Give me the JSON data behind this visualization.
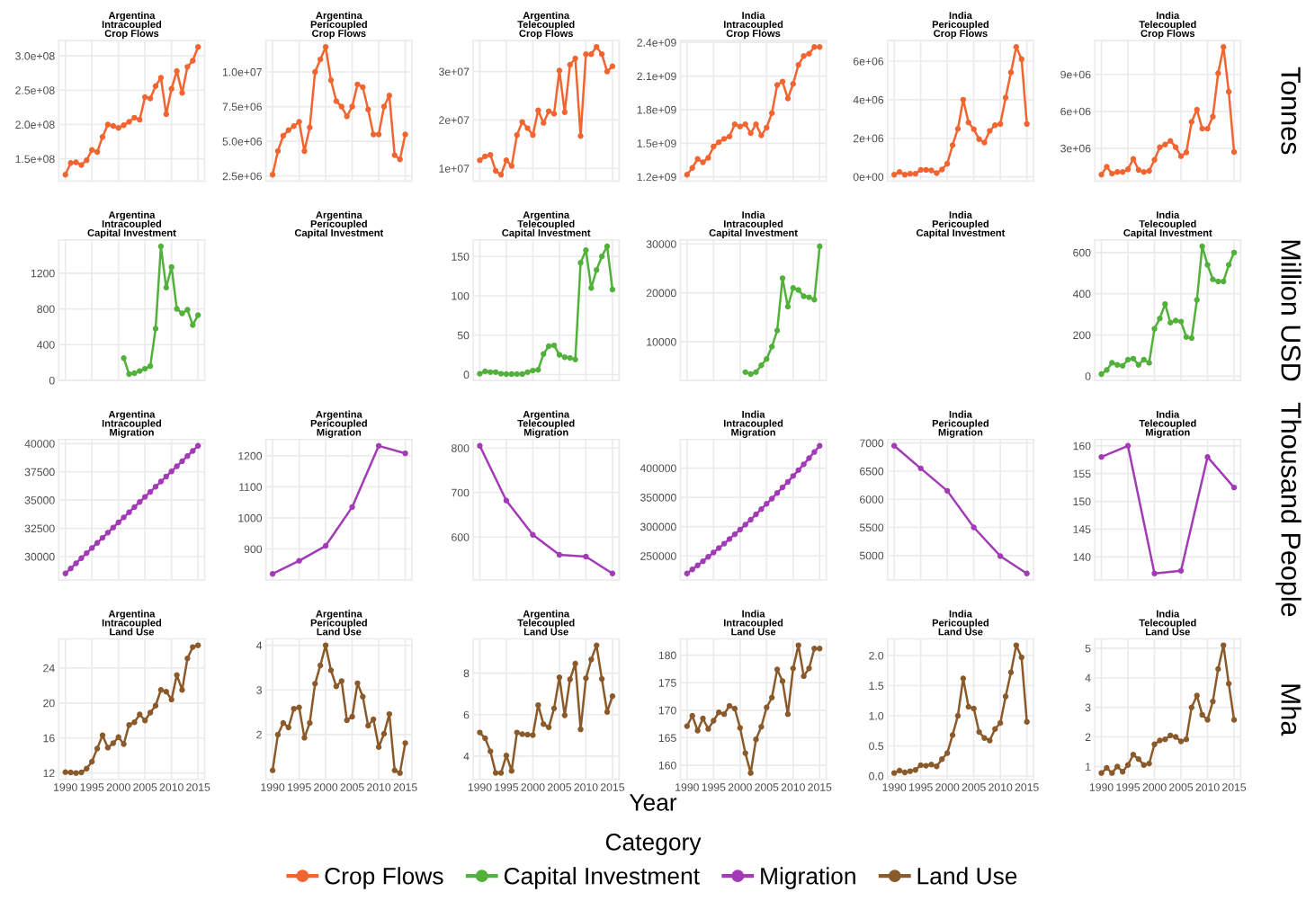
{
  "chart_data": [
    {
      "type": "line",
      "title": "Argentina\nIntracoupled\nCrop Flows",
      "x": [
        1990,
        1991,
        1992,
        1993,
        1994,
        1995,
        1996,
        1997,
        1998,
        1999,
        2000,
        2001,
        2002,
        2003,
        2004,
        2005,
        2006,
        2007,
        2008,
        2009,
        2010,
        2011,
        2012,
        2013,
        2014,
        2015
      ],
      "series": [
        {
          "name": "Crop Flows",
          "color": "#f26430",
          "values": [
            127000000,
            144000000,
            145000000,
            141000000,
            148000000,
            163000000,
            160000000,
            182000000,
            200000000,
            198000000,
            195000000,
            199000000,
            204000000,
            210000000,
            207000000,
            240000000,
            238000000,
            256000000,
            268000000,
            215000000,
            252000000,
            278000000,
            246000000,
            284000000,
            293000000,
            313000000
          ]
        }
      ],
      "xlim": [
        1988.75,
        2016.25
      ],
      "xticks": [
        1990,
        1995,
        2000,
        2005,
        2010,
        2015
      ],
      "ylim": [
        117700000,
        322300000
      ],
      "yticks": [
        {
          "value": 150000000,
          "label": "1.5e+08"
        },
        {
          "value": 200000000,
          "label": "2.0e+08"
        },
        {
          "value": 250000000,
          "label": "2.5e+08"
        },
        {
          "value": 300000000,
          "label": "3.0e+08"
        }
      ],
      "grid": true,
      "marker": "circle",
      "tick_labels": "y",
      "legend": "bottom"
    },
    {
      "type": "line",
      "title": "Argentina\nPericoupled\nCrop Flows",
      "x": [
        1990,
        1991,
        1992,
        1993,
        1994,
        1995,
        1996,
        1997,
        1998,
        1999,
        2000,
        2001,
        2002,
        2003,
        2004,
        2005,
        2006,
        2007,
        2008,
        2009,
        2010,
        2011,
        2012,
        2013,
        2014,
        2015
      ],
      "series": [
        {
          "color": "#f26430",
          "values": [
            2600000,
            4300000,
            5400000,
            5800000,
            6100000,
            6400000,
            4300000,
            6000000,
            10000000,
            10900000,
            11800000,
            9400000,
            7900000,
            7500000,
            6800000,
            7500000,
            9100000,
            8900000,
            7300000,
            5500000,
            5500000,
            7500000,
            8300000,
            4000000,
            3700000,
            5500000
          ]
        }
      ],
      "xlim": [
        1988.75,
        2016.25
      ],
      "xticks": [
        1990,
        1995,
        2000,
        2005,
        2010,
        2015
      ],
      "ylim": [
        2140000,
        12260000
      ],
      "yticks": [
        {
          "value": 2500000,
          "label": "2.5e+06"
        },
        {
          "value": 5000000,
          "label": "5.0e+06"
        },
        {
          "value": 7500000,
          "label": "7.5e+06"
        },
        {
          "value": 10000000,
          "label": "1.0e+07"
        }
      ],
      "grid": true,
      "marker": "circle",
      "tick_labels": "y"
    },
    {
      "type": "line",
      "title": "Argentina\nTelecoupled\nCrop Flows",
      "x": [
        1990,
        1991,
        1992,
        1993,
        1994,
        1995,
        1996,
        1997,
        1998,
        1999,
        2000,
        2001,
        2002,
        2003,
        2004,
        2005,
        2006,
        2007,
        2008,
        2009,
        2010,
        2011,
        2012,
        2013,
        2014,
        2015
      ],
      "series": [
        {
          "color": "#f26430",
          "values": [
            11700000,
            12500000,
            12800000,
            9500000,
            8700000,
            11700000,
            10500000,
            16900000,
            19600000,
            18300000,
            16900000,
            22000000,
            19400000,
            21800000,
            21300000,
            30200000,
            21600000,
            31400000,
            32700000,
            16700000,
            33600000,
            33600000,
            35100000,
            33600000,
            30000000,
            31100000
          ]
        }
      ],
      "xlim": [
        1988.75,
        2016.25
      ],
      "xticks": [
        1990,
        1995,
        2000,
        2005,
        2010,
        2015
      ],
      "ylim": [
        7400000,
        36400000
      ],
      "yticks": [
        {
          "value": 10000000,
          "label": "1e+07"
        },
        {
          "value": 20000000,
          "label": "2e+07"
        },
        {
          "value": 30000000,
          "label": "3e+07"
        }
      ],
      "grid": true,
      "marker": "circle",
      "tick_labels": "y"
    },
    {
      "type": "line",
      "title": "India\nIntracoupled\nCrop Flows",
      "x": [
        1990,
        1991,
        1992,
        1993,
        1994,
        1995,
        1996,
        1997,
        1998,
        1999,
        2000,
        2001,
        2002,
        2003,
        2004,
        2005,
        2006,
        2007,
        2008,
        2009,
        2010,
        2011,
        2012,
        2013,
        2014,
        2015
      ],
      "series": [
        {
          "color": "#f26430",
          "values": [
            1220000000,
            1280000000,
            1360000000,
            1330000000,
            1370000000,
            1470000000,
            1510000000,
            1540000000,
            1560000000,
            1670000000,
            1650000000,
            1670000000,
            1590000000,
            1670000000,
            1570000000,
            1640000000,
            1770000000,
            2020000000,
            2050000000,
            1900000000,
            2030000000,
            2200000000,
            2280000000,
            2300000000,
            2360000000,
            2360000000
          ]
        }
      ],
      "xlim": [
        1988.75,
        2016.25
      ],
      "xticks": [
        1990,
        1995,
        2000,
        2005,
        2010,
        2015
      ],
      "ylim": [
        1163000000,
        2417000000
      ],
      "yticks": [
        {
          "value": 1200000000,
          "label": "1.2e+09"
        },
        {
          "value": 1500000000,
          "label": "1.5e+09"
        },
        {
          "value": 1800000000,
          "label": "1.8e+09"
        },
        {
          "value": 2100000000,
          "label": "2.1e+09"
        },
        {
          "value": 2400000000,
          "label": "2.4e+09"
        }
      ],
      "grid": true,
      "marker": "circle",
      "tick_labels": "y"
    },
    {
      "type": "line",
      "title": "India\nPericoupled\nCrop Flows",
      "x": [
        1990,
        1991,
        1992,
        1993,
        1994,
        1995,
        1996,
        1997,
        1998,
        1999,
        2000,
        2001,
        2002,
        2003,
        2004,
        2005,
        2006,
        2007,
        2008,
        2009,
        2010,
        2011,
        2012,
        2013,
        2014,
        2015
      ],
      "series": [
        {
          "color": "#f26430",
          "values": [
            110000,
            250000,
            110000,
            160000,
            160000,
            360000,
            360000,
            330000,
            190000,
            380000,
            680000,
            1640000,
            2490000,
            4000000,
            2820000,
            2470000,
            1950000,
            1780000,
            2380000,
            2680000,
            2740000,
            4110000,
            5420000,
            6740000,
            6110000,
            2740000
          ]
        }
      ],
      "xlim": [
        1988.75,
        2016.25
      ],
      "xticks": [
        1990,
        1995,
        2000,
        2005,
        2010,
        2015
      ],
      "ylim": [
        -220000,
        7070000
      ],
      "yticks": [
        {
          "value": 0,
          "label": "0e+00"
        },
        {
          "value": 2000000,
          "label": "2e+06"
        },
        {
          "value": 4000000,
          "label": "4e+06"
        },
        {
          "value": 6000000,
          "label": "6e+06"
        }
      ],
      "grid": true,
      "marker": "circle",
      "tick_labels": "y"
    },
    {
      "type": "line",
      "title": "India\nTelecoupled\nCrop Flows",
      "ylabel": "Tonnes",
      "x": [
        1990,
        1991,
        1992,
        1993,
        1994,
        1995,
        1996,
        1997,
        1998,
        1999,
        2000,
        2001,
        2002,
        2003,
        2004,
        2005,
        2006,
        2007,
        2008,
        2009,
        2010,
        2011,
        2012,
        2013,
        2014,
        2015
      ],
      "series": [
        {
          "color": "#f26430",
          "values": [
            860000,
            1500000,
            940000,
            1070000,
            1070000,
            1290000,
            2140000,
            1240000,
            1070000,
            1160000,
            2060000,
            3090000,
            3300000,
            3600000,
            3090000,
            2360000,
            2660000,
            5140000,
            6130000,
            4590000,
            4590000,
            5570000,
            9090000,
            11230000,
            7590000,
            2700000
          ]
        }
      ],
      "xlim": [
        1988.75,
        2016.25
      ],
      "xticks": [
        1990,
        1995,
        2000,
        2005,
        2010,
        2015
      ],
      "ylim": [
        340000,
        11750000
      ],
      "yticks": [
        {
          "value": 3000000,
          "label": "3e+06"
        },
        {
          "value": 6000000,
          "label": "6e+06"
        },
        {
          "value": 9000000,
          "label": "9e+06"
        }
      ],
      "grid": true,
      "marker": "circle",
      "tick_labels": "y"
    },
    {
      "type": "line",
      "title": "Argentina\nIntracoupled\nCapital Investment",
      "x": [
        2001,
        2002,
        2003,
        2004,
        2005,
        2006,
        2007,
        2008,
        2009,
        2010,
        2011,
        2012,
        2013,
        2014,
        2015
      ],
      "series": [
        {
          "name": "Capital Investment",
          "color": "#52b13a",
          "values": [
            250,
            70,
            80,
            105,
            130,
            160,
            580,
            1500,
            1040,
            1270,
            800,
            750,
            790,
            620,
            730
          ]
        }
      ],
      "xlim": [
        1988.75,
        2016.25
      ],
      "xticks": [
        1990,
        1995,
        2000,
        2005,
        2010,
        2015
      ],
      "ylim": [
        -1,
        1572
      ],
      "yticks": [
        0,
        400,
        800,
        1200
      ],
      "grid": true,
      "marker": "circle",
      "tick_labels": "y",
      "legend": "bottom"
    },
    {
      "type": "other",
      "title": "Argentina\nPericoupled\nCapital Investment"
    },
    {
      "type": "line",
      "title": "Argentina\nTelecoupled\nCapital Investment",
      "x": [
        1990,
        1991,
        1992,
        1993,
        1994,
        1995,
        1996,
        1997,
        1998,
        1999,
        2000,
        2001,
        2002,
        2003,
        2004,
        2005,
        2006,
        2007,
        2008,
        2009,
        2010,
        2011,
        2012,
        2013,
        2014,
        2015
      ],
      "series": [
        {
          "color": "#52b13a",
          "values": [
            1,
            4,
            3,
            3,
            1,
            0.5,
            0.5,
            0.5,
            0.5,
            3,
            5,
            6,
            26,
            36,
            37,
            25,
            22,
            21,
            19,
            142,
            158,
            110,
            133,
            150,
            163,
            108
          ]
        }
      ],
      "xlim": [
        1988.75,
        2016.25
      ],
      "xticks": [
        1990,
        1995,
        2000,
        2005,
        2010,
        2015
      ],
      "ylim": [
        -7.6,
        171
      ],
      "yticks": [
        0,
        50,
        100,
        150
      ],
      "grid": true,
      "marker": "circle",
      "tick_labels": "y"
    },
    {
      "type": "line",
      "title": "India\nIntracoupled\nCapital Investment",
      "x": [
        2001,
        2002,
        2003,
        2004,
        2005,
        2006,
        2007,
        2008,
        2009,
        2010,
        2011,
        2012,
        2013,
        2014,
        2015
      ],
      "series": [
        {
          "color": "#52b13a",
          "values": [
            3800,
            3400,
            3800,
            5200,
            6500,
            9000,
            12300,
            23000,
            17200,
            21000,
            20600,
            19300,
            19100,
            18600,
            29500
          ]
        }
      ],
      "xlim": [
        1988.75,
        2016.25
      ],
      "xticks": [
        1990,
        1995,
        2000,
        2005,
        2010,
        2015
      ],
      "ylim": [
        2095,
        30805
      ],
      "yticks": [
        10000,
        20000,
        30000
      ],
      "grid": true,
      "marker": "circle",
      "tick_labels": "y"
    },
    {
      "type": "other",
      "title": "India\nPericoupled\nCapital Investment"
    },
    {
      "type": "line",
      "title": "India\nTelecoupled\nCapital Investment",
      "ylabel": "Million USD",
      "x": [
        1990,
        1991,
        1992,
        1993,
        1994,
        1995,
        1996,
        1997,
        1998,
        1999,
        2000,
        2001,
        2002,
        2003,
        2004,
        2005,
        2006,
        2007,
        2008,
        2009,
        2010,
        2011,
        2012,
        2013,
        2014,
        2015
      ],
      "series": [
        {
          "color": "#52b13a",
          "values": [
            10,
            30,
            65,
            55,
            50,
            80,
            85,
            55,
            80,
            65,
            230,
            280,
            350,
            260,
            270,
            265,
            190,
            185,
            370,
            630,
            540,
            470,
            460,
            460,
            540,
            600
          ]
        }
      ],
      "xlim": [
        1988.75,
        2016.25
      ],
      "xticks": [
        1990,
        1995,
        2000,
        2005,
        2010,
        2015
      ],
      "ylim": [
        -21,
        661
      ],
      "yticks": [
        0,
        200,
        400,
        600
      ],
      "grid": true,
      "marker": "circle",
      "tick_labels": "y"
    },
    {
      "type": "line",
      "title": "Argentina\nIntracoupled\nMigration",
      "x": [
        1990,
        1991,
        1992,
        1993,
        1994,
        1995,
        1996,
        1997,
        1998,
        1999,
        2000,
        2001,
        2002,
        2003,
        2004,
        2005,
        2006,
        2007,
        2008,
        2009,
        2010,
        2011,
        2012,
        2013,
        2014,
        2015
      ],
      "series": [
        {
          "name": "Migration",
          "color": "#a23bb5",
          "values": [
            28500,
            28950,
            29400,
            29860,
            30310,
            30760,
            31210,
            31660,
            32120,
            32570,
            33020,
            33470,
            33920,
            34380,
            34830,
            35280,
            35730,
            36180,
            36640,
            37090,
            37540,
            37990,
            38440,
            38900,
            39350,
            39800
          ]
        }
      ],
      "xlim": [
        1988.75,
        2016.25
      ],
      "xticks": [
        1990,
        1995,
        2000,
        2005,
        2010,
        2015
      ],
      "ylim": [
        27935,
        40365
      ],
      "yticks": [
        30000,
        32500,
        35000,
        37500,
        40000
      ],
      "grid": true,
      "marker": "circle",
      "tick_labels": "y",
      "legend": "bottom"
    },
    {
      "type": "line",
      "title": "Argentina\nPericoupled\nMigration",
      "x": [
        1990,
        1995,
        2000,
        2005,
        2010,
        2015
      ],
      "series": [
        {
          "color": "#a23bb5",
          "values": [
            820,
            862,
            910,
            1035,
            1232,
            1208
          ]
        }
      ],
      "xlim": [
        1988.75,
        2016.25
      ],
      "xticks": [
        1990,
        1995,
        2000,
        2005,
        2010,
        2015
      ],
      "ylim": [
        800.4,
        1252.6
      ],
      "yticks": [
        900,
        1000,
        1100,
        1200
      ],
      "grid": true,
      "marker": "circle",
      "tick_labels": "y"
    },
    {
      "type": "line",
      "title": "Argentina\nTelecoupled\nMigration",
      "x": [
        1990,
        1995,
        2000,
        2005,
        2010,
        2015
      ],
      "series": [
        {
          "color": "#a23bb5",
          "values": [
            805,
            682,
            605,
            560,
            556,
            518
          ]
        }
      ],
      "xlim": [
        1988.75,
        2016.25
      ],
      "xticks": [
        1990,
        1995,
        2000,
        2005,
        2010,
        2015
      ],
      "ylim": [
        503.65,
        819.35
      ],
      "yticks": [
        600,
        700,
        800
      ],
      "grid": true,
      "marker": "circle",
      "tick_labels": "y"
    },
    {
      "type": "line",
      "title": "India\nIntracoupled\nMigration",
      "x": [
        1990,
        1991,
        1992,
        1993,
        1994,
        1995,
        1996,
        1997,
        1998,
        1999,
        2000,
        2001,
        2002,
        2003,
        2004,
        2005,
        2006,
        2007,
        2008,
        2009,
        2010,
        2011,
        2012,
        2013,
        2014,
        2015
      ],
      "series": [
        {
          "color": "#a23bb5",
          "values": [
            220000,
            227000,
            234000,
            241000,
            248500,
            256000,
            263500,
            271000,
            279000,
            287000,
            295000,
            303500,
            312000,
            321000,
            330000,
            339000,
            348000,
            357500,
            367000,
            376500,
            386500,
            396500,
            406500,
            417000,
            427500,
            438000
          ]
        }
      ],
      "xlim": [
        1988.75,
        2016.25
      ],
      "xticks": [
        1990,
        1995,
        2000,
        2005,
        2010,
        2015
      ],
      "ylim": [
        209100,
        448900
      ],
      "yticks": [
        250000,
        300000,
        350000,
        400000
      ],
      "grid": true,
      "marker": "circle",
      "tick_labels": "y"
    },
    {
      "type": "line",
      "title": "India\nPericoupled\nMigration",
      "x": [
        1990,
        1995,
        2000,
        2005,
        2010,
        2015
      ],
      "series": [
        {
          "color": "#a23bb5",
          "values": [
            6950,
            6550,
            6150,
            5500,
            4990,
            4680
          ]
        }
      ],
      "xlim": [
        1988.75,
        2016.25
      ],
      "xticks": [
        1990,
        1995,
        2000,
        2005,
        2010,
        2015
      ],
      "ylim": [
        4566.5,
        7063.5
      ],
      "yticks": [
        5000,
        5500,
        6000,
        6500,
        7000
      ],
      "grid": true,
      "marker": "circle",
      "tick_labels": "y"
    },
    {
      "type": "line",
      "title": "India\nTelecoupled\nMigration",
      "ylabel": "Thousand People",
      "x": [
        1990,
        1995,
        2000,
        2005,
        2010,
        2015
      ],
      "series": [
        {
          "color": "#a23bb5",
          "values": [
            158,
            160,
            137,
            137.5,
            158,
            152.5
          ]
        }
      ],
      "xlim": [
        1988.75,
        2016.25
      ],
      "xticks": [
        1990,
        1995,
        2000,
        2005,
        2010,
        2015
      ],
      "ylim": [
        135.85,
        161.15
      ],
      "yticks": [
        140,
        145,
        150,
        155,
        160
      ],
      "grid": true,
      "marker": "circle",
      "tick_labels": "y"
    },
    {
      "type": "line",
      "title": "Argentina\nIntracoupled\nLand Use",
      "x": [
        1990,
        1991,
        1992,
        1993,
        1994,
        1995,
        1996,
        1997,
        1998,
        1999,
        2000,
        2001,
        2002,
        2003,
        2004,
        2005,
        2006,
        2007,
        2008,
        2009,
        2010,
        2011,
        2012,
        2013,
        2014,
        2015
      ],
      "series": [
        {
          "name": "Land Use",
          "color": "#8b5a2b",
          "values": [
            12.1,
            12.06,
            12.0,
            12.06,
            12.5,
            13.3,
            14.8,
            16.3,
            14.9,
            15.4,
            16.1,
            15.3,
            17.5,
            17.8,
            18.7,
            18.0,
            18.9,
            19.7,
            21.5,
            21.3,
            20.4,
            23.2,
            21.5,
            25.1,
            26.4,
            26.6
          ]
        }
      ],
      "xlim": [
        1988.75,
        2016.25
      ],
      "xticks": [
        1990,
        1995,
        2000,
        2005,
        2010,
        2015
      ],
      "ylim": [
        11.27,
        27.33
      ],
      "yticks": [
        12,
        16,
        20,
        24
      ],
      "grid": true,
      "marker": "circle",
      "legend": "bottom",
      "legend_title": "Category"
    },
    {
      "type": "line",
      "title": "Argentina\nPericoupled\nLand Use",
      "x": [
        1990,
        1991,
        1992,
        1993,
        1994,
        1995,
        1996,
        1997,
        1998,
        1999,
        2000,
        2001,
        2002,
        2003,
        2004,
        2005,
        2006,
        2007,
        2008,
        2009,
        2010,
        2011,
        2012,
        2013,
        2014,
        2015
      ],
      "series": [
        {
          "color": "#8b5a2b",
          "values": [
            1.2,
            2.0,
            2.26,
            2.16,
            2.58,
            2.61,
            1.93,
            2.26,
            3.14,
            3.55,
            4.0,
            3.44,
            3.08,
            3.2,
            2.32,
            2.4,
            3.15,
            2.85,
            2.2,
            2.34,
            1.72,
            2.02,
            2.46,
            1.2,
            1.14,
            1.81
          ]
        }
      ],
      "xlim": [
        1988.75,
        2016.25
      ],
      "xticks": [
        1990,
        1995,
        2000,
        2005,
        2010,
        2015
      ],
      "ylim": [
        0.997,
        4.143
      ],
      "yticks": [
        2,
        3,
        4
      ],
      "grid": true,
      "marker": "circle"
    },
    {
      "type": "line",
      "title": "Argentina\nTelecoupled\nLand Use",
      "xlabel": "Year",
      "x": [
        1990,
        1991,
        1992,
        1993,
        1994,
        1995,
        1996,
        1997,
        1998,
        1999,
        2000,
        2001,
        2002,
        2003,
        2004,
        2005,
        2006,
        2007,
        2008,
        2009,
        2010,
        2011,
        2012,
        2013,
        2014,
        2015
      ],
      "series": [
        {
          "color": "#8b5a2b",
          "values": [
            5.14,
            4.86,
            4.23,
            3.19,
            3.19,
            4.03,
            3.29,
            5.14,
            5.06,
            5.04,
            5.01,
            6.46,
            5.54,
            5.39,
            6.3,
            7.8,
            5.97,
            7.7,
            8.46,
            5.29,
            7.75,
            8.66,
            9.34,
            7.72,
            6.13,
            6.89
          ]
        }
      ],
      "xlim": [
        1988.75,
        2016.25
      ],
      "xticks": [
        1990,
        1995,
        2000,
        2005,
        2010,
        2015
      ],
      "ylim": [
        2.88,
        9.65
      ],
      "yticks": [
        4,
        6,
        8
      ],
      "grid": true,
      "marker": "circle"
    },
    {
      "type": "line",
      "title": "India\nIntracoupled\nLand Use",
      "x": [
        1990,
        1991,
        1992,
        1993,
        1994,
        1995,
        1996,
        1997,
        1998,
        1999,
        2000,
        2001,
        2002,
        2003,
        2004,
        2005,
        2006,
        2007,
        2008,
        2009,
        2010,
        2011,
        2012,
        2013,
        2014,
        2015
      ],
      "series": [
        {
          "color": "#8b5a2b",
          "values": [
            167.1,
            169.0,
            166.3,
            168.5,
            166.6,
            168.1,
            169.6,
            169.3,
            170.8,
            170.3,
            166.8,
            162.2,
            158.6,
            164.7,
            167.0,
            170.5,
            172.3,
            177.4,
            175.3,
            169.3,
            177.6,
            181.8,
            176.2,
            177.6,
            181.2,
            181.2
          ]
        }
      ],
      "xlim": [
        1988.75,
        2016.25
      ],
      "xticks": [
        1990,
        1995,
        2000,
        2005,
        2010,
        2015
      ],
      "ylim": [
        157.44,
        182.96
      ],
      "yticks": [
        160,
        165,
        170,
        175,
        180
      ],
      "grid": true,
      "marker": "circle"
    },
    {
      "type": "line",
      "title": "India\nPericoupled\nLand Use",
      "x": [
        1990,
        1991,
        1992,
        1993,
        1994,
        1995,
        1996,
        1997,
        1998,
        1999,
        2000,
        2001,
        2002,
        2003,
        2004,
        2005,
        2006,
        2007,
        2008,
        2009,
        2010,
        2011,
        2012,
        2013,
        2014,
        2015
      ],
      "series": [
        {
          "color": "#8b5a2b",
          "values": [
            0.05,
            0.09,
            0.06,
            0.08,
            0.1,
            0.18,
            0.17,
            0.19,
            0.16,
            0.28,
            0.38,
            0.68,
            1.0,
            1.62,
            1.15,
            1.12,
            0.73,
            0.63,
            0.59,
            0.78,
            0.88,
            1.32,
            1.72,
            2.17,
            1.97,
            0.9
          ]
        }
      ],
      "xlim": [
        1988.75,
        2016.25
      ],
      "xticks": [
        1990,
        1995,
        2000,
        2005,
        2010,
        2015
      ],
      "ylim": [
        -0.056,
        2.276
      ],
      "yticks": [
        {
          "value": 0,
          "label": "0.0"
        },
        0.5,
        {
          "value": 1,
          "label": "1.0"
        },
        1.5,
        {
          "value": 2,
          "label": "2.0"
        }
      ],
      "grid": true,
      "marker": "circle"
    },
    {
      "type": "line",
      "title": "India\nTelecoupled\nLand Use",
      "ylabel": "Mha",
      "x": [
        1990,
        1991,
        1992,
        1993,
        1994,
        1995,
        1996,
        1997,
        1998,
        1999,
        2000,
        2001,
        2002,
        2003,
        2004,
        2005,
        2006,
        2007,
        2008,
        2009,
        2010,
        2011,
        2012,
        2013,
        2014,
        2015
      ],
      "series": [
        {
          "color": "#8b5a2b",
          "values": [
            0.78,
            0.95,
            0.78,
            1.0,
            0.82,
            1.05,
            1.4,
            1.25,
            1.05,
            1.1,
            1.75,
            1.88,
            1.92,
            2.05,
            2.0,
            1.85,
            1.92,
            3.0,
            3.4,
            2.75,
            2.58,
            3.2,
            4.3,
            5.1,
            3.8,
            2.58
          ]
        }
      ],
      "xlim": [
        1988.75,
        2016.25
      ],
      "xticks": [
        1990,
        1995,
        2000,
        2005,
        2010,
        2015
      ],
      "ylim": [
        0.564,
        5.316
      ],
      "yticks": [
        1,
        2,
        3,
        4,
        5
      ],
      "grid": true,
      "marker": "circle"
    }
  ]
}
